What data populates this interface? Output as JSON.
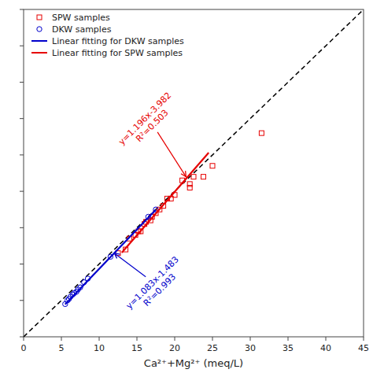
{
  "chart_data": {
    "type": "scatter",
    "xlabel": "Ca²⁺+Mg²⁺ (meq/L)",
    "xlim": [
      0,
      45
    ],
    "ylim": [
      0,
      45
    ],
    "xticks": [
      0,
      5,
      10,
      15,
      20,
      25,
      30,
      35,
      40,
      45
    ],
    "yticks": [
      0,
      5,
      10,
      15,
      20,
      25,
      30,
      35,
      40,
      45
    ],
    "tick_labels": "x",
    "grid": false,
    "legend": "upper left",
    "series": [
      {
        "type": "line",
        "color": "#000000",
        "line_style": "dashed",
        "x": [
          0,
          45
        ],
        "values": [
          0,
          45
        ]
      },
      {
        "name": "SPW samples",
        "type": "scatter",
        "marker": "square",
        "color": "#e60000",
        "x": [
          12.5,
          13.5,
          14.0,
          14.8,
          15.2,
          15.5,
          16.0,
          16.2,
          16.8,
          17.0,
          17.5,
          18.0,
          18.5,
          19.0,
          19.5,
          20.0,
          21.0,
          22.0,
          22.5,
          25.0,
          31.5,
          23.8,
          22.0
        ],
        "values": [
          11.5,
          12.0,
          13.5,
          14.0,
          14.5,
          14.5,
          15.5,
          15.8,
          16.0,
          16.5,
          17.0,
          17.5,
          18.0,
          19.0,
          19.0,
          19.5,
          21.5,
          20.5,
          22.0,
          23.5,
          28.0,
          22.0,
          21.0
        ]
      },
      {
        "name": "DKW samples",
        "type": "scatter",
        "marker": "circle",
        "color": "#0000cc",
        "x": [
          5.5,
          5.8,
          6.0,
          6.2,
          6.5,
          6.7,
          7.0,
          7.2,
          7.5,
          8.0,
          8.5,
          11.5,
          16.5,
          17.5
        ],
        "values": [
          4.5,
          5.0,
          5.2,
          5.5,
          5.8,
          6.0,
          6.2,
          6.5,
          6.8,
          7.5,
          8.0,
          11.0,
          16.5,
          17.5
        ]
      },
      {
        "name": "Linear fitting for DKW samples",
        "type": "line",
        "color": "#0000cc",
        "line_style": "solid",
        "x": [
          5.5,
          17.5
        ],
        "values": [
          4.4735,
          17.4695
        ]
      },
      {
        "name": "Linear fitting for SPW samples",
        "type": "line",
        "color": "#e60000",
        "line_style": "solid",
        "x": [
          13.0,
          24.5
        ],
        "values": [
          11.566,
          25.32
        ]
      }
    ],
    "annotations": [
      {
        "text": [
          "y=1.196x-3.982",
          "R²=0.503"
        ],
        "color": "#e60000",
        "x": 21.5,
        "y": 22.0,
        "text_x": 17.5,
        "text_y": 28.5,
        "align": "bottom"
      },
      {
        "text": [
          "y=1.083x-1.483",
          "R²=0.993"
        ],
        "color": "#0000cc",
        "x": 12.0,
        "y": 11.5,
        "text_x": 16.5,
        "text_y": 8.0,
        "align": "top"
      }
    ]
  }
}
